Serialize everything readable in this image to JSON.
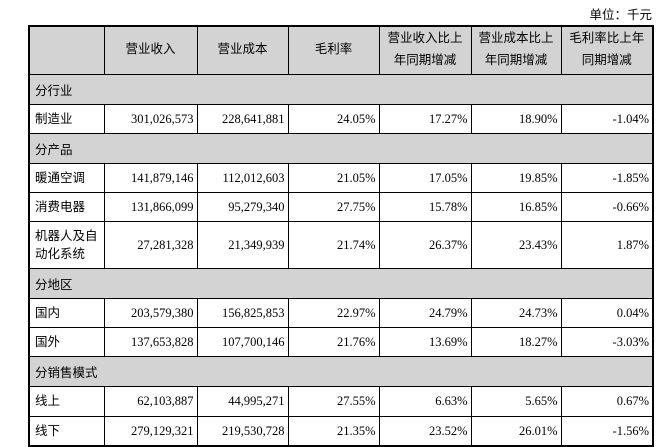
{
  "page": {
    "unit_label": "单位：千元"
  },
  "table": {
    "columns": [
      "",
      "营业收入",
      "营业成本",
      "毛利率",
      "营业收入比上年同期增减",
      "营业成本比上年同期增减",
      "毛利率比上年同期增减"
    ],
    "sections": [
      {
        "title": "分行业",
        "rows": [
          {
            "label": "制造业",
            "values": [
              "301,026,573",
              "228,641,881",
              "24.05%",
              "17.27%",
              "18.90%",
              "-1.04%"
            ]
          }
        ]
      },
      {
        "title": "分产品",
        "rows": [
          {
            "label": "暖通空调",
            "values": [
              "141,879,146",
              "112,012,603",
              "21.05%",
              "17.05%",
              "19.85%",
              "-1.85%"
            ]
          },
          {
            "label": "消费电器",
            "values": [
              "131,866,099",
              "95,279,340",
              "27.75%",
              "15.78%",
              "16.85%",
              "-0.66%"
            ]
          },
          {
            "label": "机器人及自动化系统",
            "values": [
              "27,281,328",
              "21,349,939",
              "21.74%",
              "26.37%",
              "23.43%",
              "1.87%"
            ]
          }
        ]
      },
      {
        "title": "分地区",
        "rows": [
          {
            "label": "国内",
            "values": [
              "203,579,380",
              "156,825,853",
              "22.97%",
              "24.79%",
              "24.73%",
              "0.04%"
            ]
          },
          {
            "label": "国外",
            "values": [
              "137,653,828",
              "107,700,146",
              "21.76%",
              "13.69%",
              "18.27%",
              "-3.03%"
            ]
          }
        ]
      },
      {
        "title": "分销售模式",
        "rows": [
          {
            "label": "线上",
            "values": [
              "62,103,887",
              "44,995,271",
              "27.55%",
              "6.63%",
              "5.65%",
              "0.67%"
            ]
          },
          {
            "label": "线下",
            "values": [
              "279,129,321",
              "219,530,728",
              "21.35%",
              "23.52%",
              "26.01%",
              "-1.56%"
            ]
          }
        ]
      }
    ],
    "colors": {
      "header_bg": "#d3d3d3",
      "border": "#000000",
      "text": "#000000"
    }
  }
}
